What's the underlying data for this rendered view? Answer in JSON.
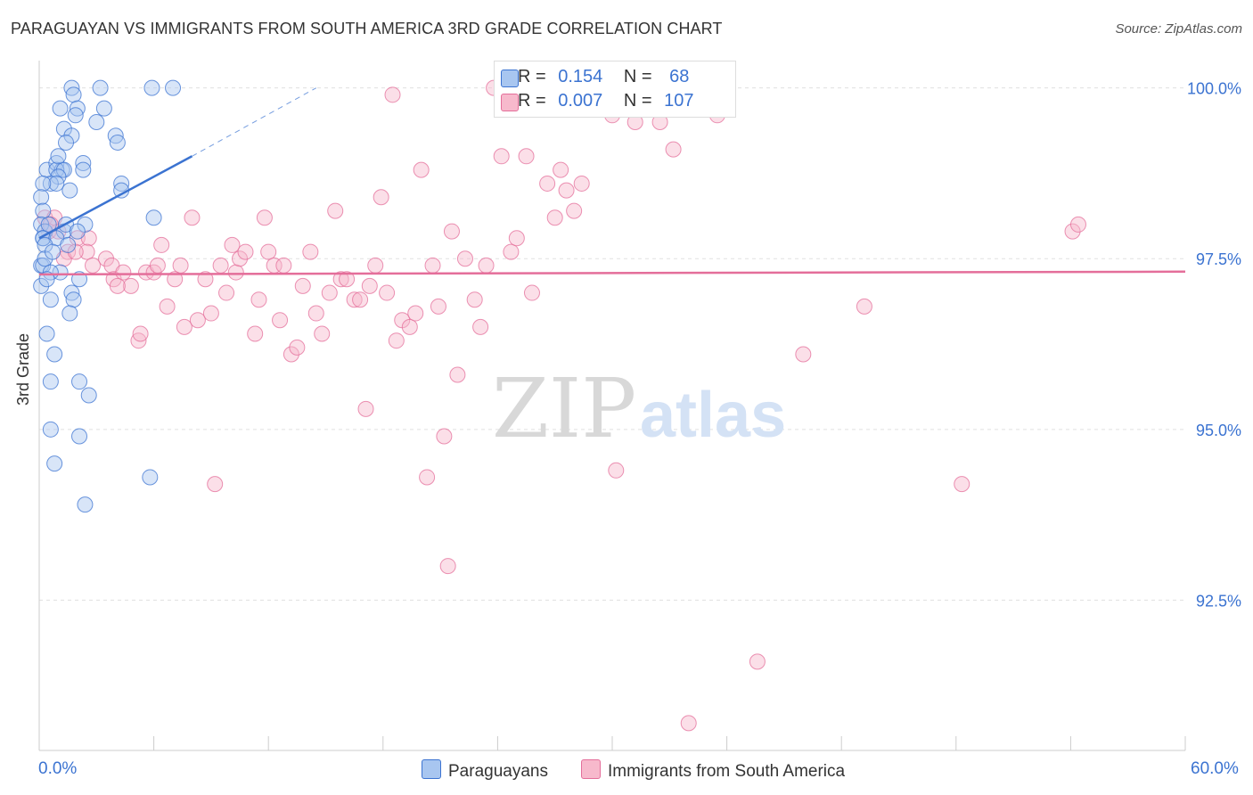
{
  "title": "PARAGUAYAN VS IMMIGRANTS FROM SOUTH AMERICA 3RD GRADE CORRELATION CHART",
  "source": "Source: ZipAtlas.com",
  "watermark": {
    "zip": "ZIP",
    "atlas": "atlas"
  },
  "legend": {
    "rows": [
      {
        "r_label": "R =",
        "r_value": "0.154",
        "n_label": "N =",
        "n_value": "68",
        "color": "#a8c6f0"
      },
      {
        "r_label": "R =",
        "r_value": "0.007",
        "n_label": "N =",
        "n_value": "107",
        "color": "#f7b9cc"
      }
    ]
  },
  "bottom_legend": {
    "series1": "Paraguayans",
    "series2": "Immigrants from South America"
  },
  "colors": {
    "blue": "#3b73d1",
    "blue_fill": "#a8c6f0",
    "pink": "#e46e9a",
    "pink_fill": "#f7b9cc",
    "grid": "#e0e0e0",
    "axis_text": "#3b73d1"
  },
  "chart_data": {
    "type": "scatter",
    "xlabel": "",
    "ylabel": "3rd Grade",
    "xlim": [
      0,
      60
    ],
    "ylim": [
      90.3,
      100.4
    ],
    "x_tick_labels": {
      "min": "0.0%",
      "max": "60.0%"
    },
    "y_ticks": [
      {
        "value": 100.0,
        "label": "100.0%"
      },
      {
        "value": 97.5,
        "label": "97.5%"
      },
      {
        "value": 95.0,
        "label": "95.0%"
      },
      {
        "value": 92.5,
        "label": "92.5%"
      }
    ],
    "grid": "horizontal dashed",
    "series": [
      {
        "name": "Paraguayans",
        "color": "#3b73d1",
        "trend": {
          "x1": 0,
          "y1": 97.8,
          "x2": 8.0,
          "y2": 99.0,
          "dashed_to_x": 14.5,
          "dashed_to_y": 100.0
        },
        "points": [
          [
            1.7,
            100.0
          ],
          [
            3.2,
            100.0
          ],
          [
            5.9,
            100.0
          ],
          [
            7.0,
            100.0
          ],
          [
            1.8,
            99.9
          ],
          [
            2.0,
            99.7
          ],
          [
            1.1,
            99.7
          ],
          [
            3.4,
            99.7
          ],
          [
            1.9,
            99.6
          ],
          [
            3.0,
            99.5
          ],
          [
            1.3,
            99.4
          ],
          [
            4.0,
            99.3
          ],
          [
            1.7,
            99.3
          ],
          [
            1.4,
            99.2
          ],
          [
            4.1,
            99.2
          ],
          [
            0.4,
            98.8
          ],
          [
            0.9,
            98.9
          ],
          [
            1.2,
            98.8
          ],
          [
            2.3,
            98.9
          ],
          [
            0.9,
            98.8
          ],
          [
            1.3,
            98.8
          ],
          [
            2.3,
            98.8
          ],
          [
            1.0,
            98.7
          ],
          [
            0.6,
            98.6
          ],
          [
            0.9,
            98.6
          ],
          [
            0.2,
            98.6
          ],
          [
            4.3,
            98.6
          ],
          [
            1.6,
            98.5
          ],
          [
            4.3,
            98.5
          ],
          [
            0.1,
            98.4
          ],
          [
            0.2,
            98.2
          ],
          [
            6.0,
            98.1
          ],
          [
            0.1,
            98.0
          ],
          [
            2.4,
            98.0
          ],
          [
            0.3,
            97.9
          ],
          [
            1.3,
            97.9
          ],
          [
            0.2,
            97.8
          ],
          [
            0.2,
            97.8
          ],
          [
            0.9,
            97.8
          ],
          [
            0.3,
            97.7
          ],
          [
            1.5,
            97.7
          ],
          [
            0.1,
            97.4
          ],
          [
            0.2,
            97.4
          ],
          [
            1.1,
            97.3
          ],
          [
            2.1,
            97.2
          ],
          [
            0.1,
            97.1
          ],
          [
            1.7,
            97.0
          ],
          [
            0.6,
            96.9
          ],
          [
            1.8,
            96.9
          ],
          [
            1.6,
            96.7
          ],
          [
            0.4,
            96.4
          ],
          [
            0.8,
            96.1
          ],
          [
            2.1,
            95.7
          ],
          [
            0.6,
            95.7
          ],
          [
            2.6,
            95.5
          ],
          [
            0.6,
            95.0
          ],
          [
            2.1,
            94.9
          ],
          [
            0.8,
            94.5
          ],
          [
            5.8,
            94.3
          ],
          [
            2.4,
            93.9
          ],
          [
            0.3,
            97.5
          ],
          [
            0.6,
            97.3
          ],
          [
            1.4,
            98.0
          ],
          [
            0.5,
            98.0
          ],
          [
            2.0,
            97.9
          ],
          [
            1.0,
            99.0
          ],
          [
            0.7,
            97.6
          ],
          [
            0.4,
            97.2
          ]
        ]
      },
      {
        "name": "Immigrants from South America",
        "color": "#e46e9a",
        "trend": {
          "x1": 0,
          "y1": 97.27,
          "x2": 60,
          "y2": 97.31
        },
        "points": [
          [
            0.3,
            98.1
          ],
          [
            0.5,
            97.9
          ],
          [
            1.0,
            97.9
          ],
          [
            1.5,
            97.6
          ],
          [
            2.0,
            97.8
          ],
          [
            2.6,
            97.8
          ],
          [
            2.5,
            97.6
          ],
          [
            3.5,
            97.5
          ],
          [
            3.8,
            97.4
          ],
          [
            3.9,
            97.2
          ],
          [
            4.4,
            97.3
          ],
          [
            4.8,
            97.1
          ],
          [
            5.2,
            96.3
          ],
          [
            5.3,
            96.4
          ],
          [
            5.6,
            97.3
          ],
          [
            6.0,
            97.3
          ],
          [
            6.2,
            97.4
          ],
          [
            6.4,
            97.7
          ],
          [
            6.7,
            96.8
          ],
          [
            7.1,
            97.2
          ],
          [
            7.4,
            97.4
          ],
          [
            7.6,
            96.5
          ],
          [
            8.0,
            98.1
          ],
          [
            8.3,
            96.6
          ],
          [
            8.7,
            97.2
          ],
          [
            9.0,
            96.7
          ],
          [
            9.2,
            94.2
          ],
          [
            9.5,
            97.4
          ],
          [
            9.8,
            97.0
          ],
          [
            10.1,
            97.7
          ],
          [
            10.3,
            97.3
          ],
          [
            10.5,
            97.5
          ],
          [
            10.8,
            97.6
          ],
          [
            11.3,
            96.4
          ],
          [
            11.5,
            96.9
          ],
          [
            11.8,
            98.1
          ],
          [
            12.0,
            97.6
          ],
          [
            12.3,
            97.4
          ],
          [
            12.6,
            96.6
          ],
          [
            12.8,
            97.4
          ],
          [
            13.2,
            96.1
          ],
          [
            13.5,
            96.2
          ],
          [
            13.8,
            97.1
          ],
          [
            14.2,
            97.6
          ],
          [
            14.5,
            96.7
          ],
          [
            14.8,
            96.4
          ],
          [
            15.2,
            97.0
          ],
          [
            15.5,
            98.2
          ],
          [
            15.8,
            97.2
          ],
          [
            16.1,
            97.2
          ],
          [
            16.5,
            96.9
          ],
          [
            16.8,
            96.9
          ],
          [
            17.1,
            95.3
          ],
          [
            17.3,
            97.1
          ],
          [
            17.6,
            97.4
          ],
          [
            17.9,
            98.4
          ],
          [
            18.2,
            97.0
          ],
          [
            18.5,
            99.9
          ],
          [
            18.7,
            96.3
          ],
          [
            19.0,
            96.6
          ],
          [
            19.4,
            96.5
          ],
          [
            19.7,
            96.7
          ],
          [
            20.0,
            98.8
          ],
          [
            20.3,
            94.3
          ],
          [
            20.6,
            97.4
          ],
          [
            20.9,
            96.8
          ],
          [
            21.2,
            94.9
          ],
          [
            21.6,
            97.9
          ],
          [
            21.9,
            95.8
          ],
          [
            22.3,
            97.5
          ],
          [
            22.8,
            96.9
          ],
          [
            23.1,
            96.5
          ],
          [
            23.4,
            97.4
          ],
          [
            23.8,
            100.0
          ],
          [
            24.2,
            99.0
          ],
          [
            24.7,
            97.6
          ],
          [
            25.0,
            97.8
          ],
          [
            25.5,
            99.0
          ],
          [
            25.8,
            97.0
          ],
          [
            26.6,
            98.6
          ],
          [
            27.0,
            98.1
          ],
          [
            27.3,
            98.8
          ],
          [
            27.6,
            98.5
          ],
          [
            28.0,
            98.2
          ],
          [
            28.4,
            98.6
          ],
          [
            29.5,
            100.0
          ],
          [
            30.0,
            99.6
          ],
          [
            31.2,
            99.5
          ],
          [
            32.5,
            99.5
          ],
          [
            33.2,
            99.1
          ],
          [
            34.0,
            90.7
          ],
          [
            35.2,
            100.0
          ],
          [
            35.5,
            99.6
          ],
          [
            37.6,
            91.6
          ],
          [
            40.0,
            96.1
          ],
          [
            43.2,
            96.8
          ],
          [
            48.3,
            94.2
          ],
          [
            54.1,
            97.9
          ],
          [
            54.4,
            98.0
          ],
          [
            30.2,
            94.4
          ],
          [
            21.4,
            93.0
          ],
          [
            0.8,
            98.1
          ],
          [
            1.3,
            97.5
          ],
          [
            0.6,
            98.0
          ],
          [
            4.1,
            97.1
          ],
          [
            2.8,
            97.4
          ],
          [
            1.9,
            97.6
          ]
        ]
      }
    ]
  }
}
